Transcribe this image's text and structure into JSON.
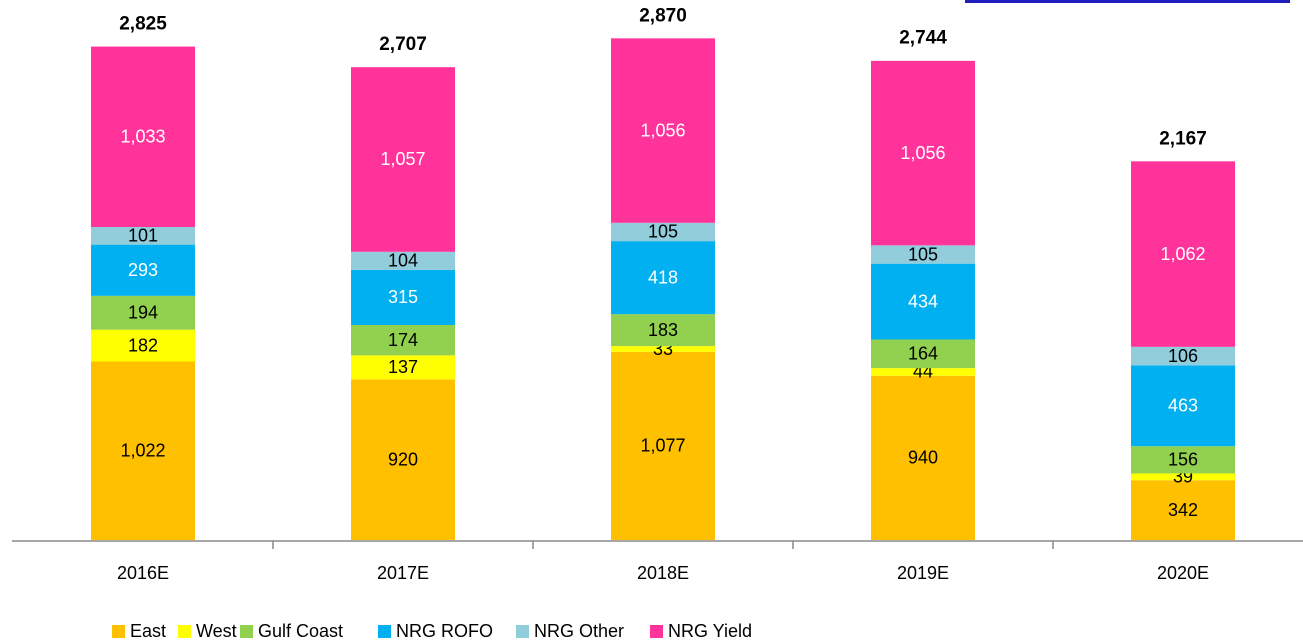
{
  "chart_data": {
    "type": "stacked_bar",
    "categories": [
      "2016E",
      "2017E",
      "2018E",
      "2019E",
      "2020E"
    ],
    "series": [
      {
        "name": "East",
        "color": "#ffc000",
        "label_color": "#000000",
        "values": [
          1022,
          920,
          1077,
          940,
          342
        ],
        "value_labels": [
          "1,022",
          "920",
          "1,077",
          "940",
          "342"
        ]
      },
      {
        "name": "West",
        "color": "#ffff00",
        "label_color": "#000000",
        "values": [
          182,
          137,
          33,
          44,
          39
        ],
        "value_labels": [
          "182",
          "137",
          "33",
          "44",
          "39"
        ]
      },
      {
        "name": "Gulf Coast",
        "color": "#92d050",
        "label_color": "#000000",
        "values": [
          194,
          174,
          183,
          164,
          156
        ],
        "value_labels": [
          "194",
          "174",
          "183",
          "164",
          "156"
        ]
      },
      {
        "name": "NRG ROFO",
        "color": "#00b0f0",
        "label_color": "#ffffff",
        "values": [
          293,
          315,
          418,
          434,
          463
        ],
        "value_labels": [
          "293",
          "315",
          "418",
          "434",
          "463"
        ]
      },
      {
        "name": "NRG Other",
        "color": "#92cddc",
        "label_color": "#000000",
        "values": [
          101,
          104,
          105,
          105,
          106
        ],
        "value_labels": [
          "101",
          "104",
          "105",
          "105",
          "106"
        ]
      },
      {
        "name": "NRG Yield",
        "color": "#ff3399",
        "label_color": "#ffffff",
        "values": [
          1033,
          1057,
          1056,
          1056,
          1062
        ],
        "value_labels": [
          "1,033",
          "1,057",
          "1,056",
          "1,056",
          "1,062"
        ]
      }
    ],
    "totals": [
      2825,
      2707,
      2870,
      2744,
      2167
    ],
    "total_labels": [
      "2,825",
      "2,707",
      "2,870",
      "2,744",
      "2,167"
    ],
    "ylim": [
      0,
      3000
    ]
  }
}
